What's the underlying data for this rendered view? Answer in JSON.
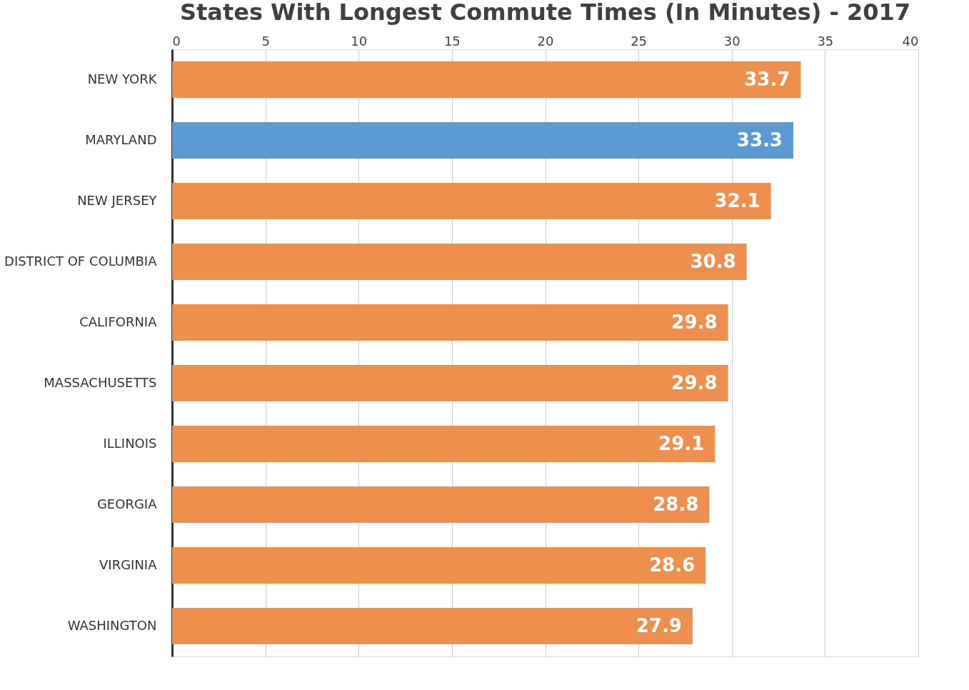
{
  "chart_data": {
    "type": "bar",
    "orientation": "horizontal",
    "title": "States With Longest Commute Times (In Minutes) - 2017",
    "categories": [
      "NEW YORK",
      "MARYLAND",
      "NEW JERSEY",
      "DISTRICT OF COLUMBIA",
      "CALIFORNIA",
      "MASSACHUSETTS",
      "ILLINOIS",
      "GEORGIA",
      "VIRGINIA",
      "WASHINGTON"
    ],
    "values": [
      33.7,
      33.3,
      32.1,
      30.8,
      29.8,
      29.8,
      29.1,
      28.8,
      28.6,
      27.9
    ],
    "colors": [
      "#ef8f4d",
      "#5b9bd5",
      "#ef8f4d",
      "#ef8f4d",
      "#ef8f4d",
      "#ef8f4d",
      "#ef8f4d",
      "#ef8f4d",
      "#ef8f4d",
      "#ef8f4d"
    ],
    "xlim": [
      0,
      40
    ],
    "xticks": [
      0,
      5,
      10,
      15,
      20,
      25,
      30,
      35,
      40
    ],
    "grid": "x",
    "data_labels": true
  }
}
